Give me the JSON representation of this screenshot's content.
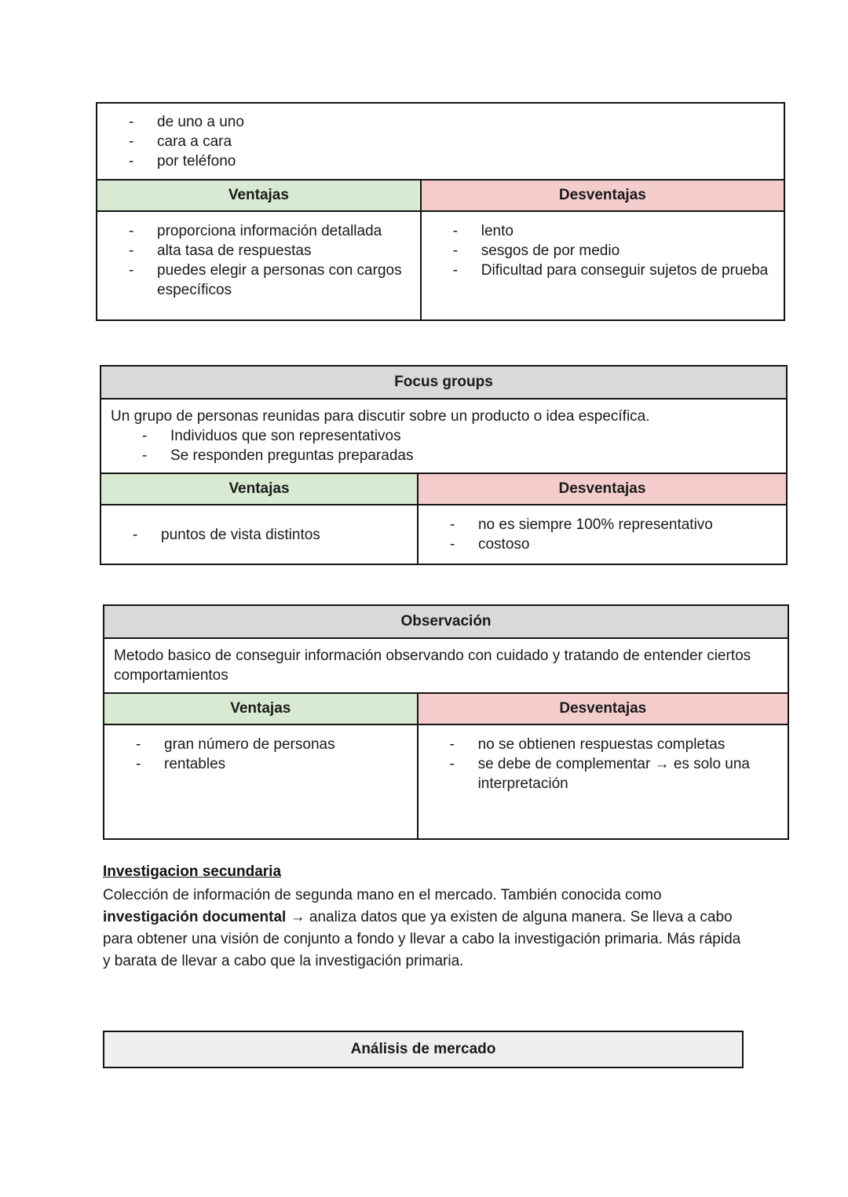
{
  "colors": {
    "ventajas_header_bg": "#d9ead3",
    "desventajas_header_bg": "#f4cccc",
    "table_title_bg": "#d9d9d9",
    "bottom_bar_bg": "#efefef",
    "border": "#141414",
    "text": "#1a1a1a"
  },
  "labels": {
    "ventajas": "Ventajas",
    "desventajas": "Desventajas"
  },
  "interview_table": {
    "intro_bullets": [
      "de uno a uno",
      "cara a cara",
      "por teléfono"
    ],
    "ventajas": [
      "proporciona información detallada",
      "alta tasa de respuestas",
      "puedes elegir a personas con cargos específicos"
    ],
    "desventajas": [
      "lento",
      "sesgos de por medio",
      "Dificultad para conseguir sujetos de prueba"
    ]
  },
  "focus_table": {
    "title": "Focus groups",
    "description": "Un grupo de personas reunidas para discutir sobre un producto o idea específica.",
    "description_bullets": [
      "Individuos que son representativos",
      "Se responden preguntas preparadas"
    ],
    "ventajas": [
      "puntos de vista distintos"
    ],
    "desventajas": [
      "no es siempre 100% representativo",
      "costoso"
    ]
  },
  "observation_table": {
    "title": "Observación",
    "description": "Metodo basico de conseguir información observando con cuidado y tratando de entender ciertos comportamientos",
    "ventajas": [
      "gran número de personas",
      "rentables"
    ],
    "desventajas": [
      "no se obtienen respuestas completas",
      "se debe de complementar → es solo una interpretación"
    ]
  },
  "secondary_research": {
    "heading": "Investigacion secundaria",
    "para_before_bold": "Colección de información de segunda mano en el mercado. También conocida como ",
    "para_bold": "investigación documental",
    "para_after_bold": " → analiza datos que ya existen de alguna manera. Se lleva a cabo para obtener una visión de conjunto a fondo y llevar a cabo la investigación primaria. Más rápida y barata de llevar a cabo que la investigación primaria."
  },
  "bottom_bar": {
    "title": "Análisis de mercado"
  }
}
